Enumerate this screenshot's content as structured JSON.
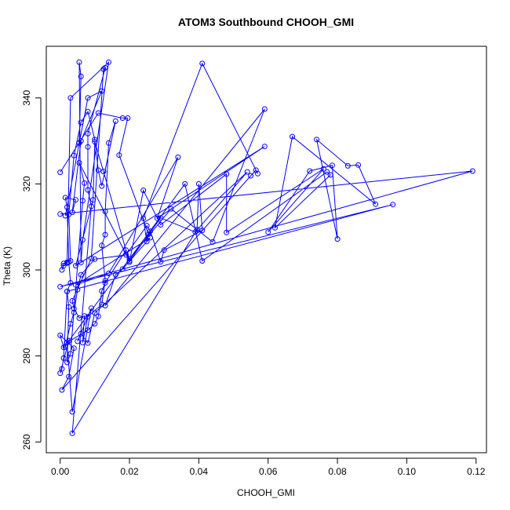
{
  "chart_data": {
    "type": "line",
    "title": "ATOM3 Southbound CHOOH_GMI",
    "xlabel": "CHOOH_GMI",
    "ylabel": "Theta (K)",
    "xlim": [
      -0.004,
      0.123
    ],
    "ylim": [
      257.5,
      352
    ],
    "xticks": [
      0.0,
      0.02,
      0.04,
      0.06,
      0.08,
      0.1,
      0.12
    ],
    "xtick_labels": [
      "0.00",
      "0.02",
      "0.04",
      "0.06",
      "0.08",
      "0.10",
      "0.12"
    ],
    "yticks": [
      260,
      280,
      300,
      320,
      340
    ],
    "ytick_labels": [
      "260",
      "280",
      "300",
      "320",
      "340"
    ],
    "grid": false,
    "series_color": "#0000ff",
    "markers": "open-circle",
    "series": [
      {
        "points": [
          [
            0.0,
            322.7
          ],
          [
            0.011,
            336.5
          ],
          [
            0.018,
            335.3
          ],
          [
            0.0195,
            335.3
          ],
          [
            0.017,
            326.7
          ],
          [
            0.0255,
            308.3
          ],
          [
            0.025,
            306.6
          ],
          [
            0.024,
            312.0
          ],
          [
            0.041,
            348.0
          ],
          [
            0.057,
            322.4
          ],
          [
            0.0565,
            323.2
          ],
          [
            0.055,
            321.9
          ],
          [
            0.0005,
            272.1
          ],
          [
            0.0025,
            275.2
          ],
          [
            0.004,
            281.8
          ],
          [
            0.0,
            284.8
          ],
          [
            0.001,
            282.0
          ],
          [
            0.0015,
            282.1
          ],
          [
            0.003,
            287.5
          ],
          [
            0.004,
            290.1
          ],
          [
            0.005,
            295.4
          ],
          [
            0.006,
            298.9
          ],
          [
            0.01,
            302.5
          ],
          [
            0.019,
            303.5
          ],
          [
            0.025,
            310.3
          ],
          [
            0.026,
            309.0
          ],
          [
            0.029,
            301.9
          ],
          [
            0.03,
            304.6
          ],
          [
            0.041,
            309.2
          ],
          [
            0.04,
            320.0
          ],
          [
            0.0395,
            309.4
          ],
          [
            0.0035,
            262.0
          ],
          [
            0.009,
            314.8
          ],
          [
            0.008,
            318.6
          ],
          [
            0.008,
            328.6
          ],
          [
            0.008,
            331.7
          ],
          [
            0.013,
            347.0
          ],
          [
            0.0125,
            346.7
          ],
          [
            0.009,
            302.7
          ],
          [
            0.0035,
            292.8
          ],
          [
            0.004,
            291.0
          ],
          [
            0.0055,
            288.8
          ],
          [
            0.007,
            289.3
          ],
          [
            0.0065,
            283.1
          ],
          [
            0.008,
            289.1
          ],
          [
            0.012,
            292.0
          ],
          [
            0.013,
            297.5
          ],
          [
            0.012,
            305.7
          ],
          [
            0.013,
            308.2
          ],
          [
            0.013,
            313.6
          ],
          [
            0.014,
            329.5
          ],
          [
            0.016,
            334.6
          ],
          [
            0.012,
            319.5
          ],
          [
            0.011,
            323.2
          ],
          [
            0.01,
            330.3
          ],
          [
            0.008,
            336.8
          ],
          [
            0.006,
            334.3
          ],
          [
            0.004,
            326.6
          ],
          [
            0.0025,
            312.9
          ],
          [
            0.003,
            302.1
          ],
          [
            0.002,
            301.8
          ],
          [
            0.001,
            301.5
          ],
          [
            0.0005,
            300.0
          ],
          [
            0.001,
            301.0
          ],
          [
            0.002,
            301.6
          ],
          [
            0.003,
            340.0
          ],
          [
            0.014,
            348.3
          ],
          [
            0.0065,
            307.0
          ],
          [
            0.006,
            301.7
          ],
          [
            0.0055,
            348.3
          ],
          [
            0.006,
            345.0
          ],
          [
            0.0055,
            329.5
          ],
          [
            0.0015,
            312.6
          ],
          [
            0.008,
            340.0
          ],
          [
            0.012,
            341.6
          ],
          [
            0.006,
            330.0
          ],
          [
            0.0035,
            313.4
          ],
          [
            0.0045,
            316.3
          ],
          [
            0.0015,
            316.8
          ],
          [
            0.002,
            314.6
          ],
          [
            0.0025,
            301.8
          ],
          [
            0.003,
            297.0
          ],
          [
            0.002,
            295.0
          ],
          [
            0.0025,
            291.4
          ],
          [
            0.002,
            278.5
          ],
          [
            0.003,
            280.5
          ],
          [
            0.0065,
            316.1
          ],
          [
            0.007,
            320.2
          ],
          [
            0.0055,
            324.9
          ],
          [
            0.02,
            302.1
          ],
          [
            0.029,
            312.1
          ],
          [
            0.039,
            308.8
          ],
          [
            0.054,
            322.8
          ],
          [
            0.01,
            290.0
          ],
          [
            0.008,
            283.0
          ],
          [
            0.006,
            285.2
          ],
          [
            0.005,
            283.4
          ],
          [
            0.009,
            291.1
          ],
          [
            0.0035,
            267.0
          ],
          [
            0.002,
            283.1
          ],
          [
            0.008,
            286.0
          ],
          [
            0.01,
            287.5
          ],
          [
            0.011,
            289.2
          ],
          [
            0.012,
            295.1
          ],
          [
            0.013,
            297.0
          ],
          [
            0.019,
            304.6
          ],
          [
            0.02,
            302.6
          ],
          [
            0.032,
            314.2
          ],
          [
            0.044,
            306.5
          ],
          [
            0.059,
            337.4
          ],
          [
            0.013,
            291.7
          ],
          [
            0.016,
            298.9
          ],
          [
            0.018,
            300.2
          ],
          [
            0.026,
            307.5
          ],
          [
            0.0045,
            296.5
          ],
          [
            0.014,
            299.2
          ],
          [
            0.034,
            326.2
          ],
          [
            0.028,
            312.0
          ],
          [
            0.059,
            328.7
          ],
          [
            0.0045,
            301.0
          ],
          [
            0.0095,
            316.3
          ],
          [
            0.01,
            329.8
          ],
          [
            0.0125,
            322.9
          ],
          [
            0.02,
            301.8
          ],
          [
            0.024,
            318.5
          ],
          [
            0.029,
            310.5
          ],
          [
            0.048,
            322.3
          ],
          [
            0.048,
            308.7
          ],
          [
            0.076,
            323.5
          ],
          [
            0.06,
            308.8
          ],
          [
            0.072,
            323.0
          ],
          [
            0.0785,
            324.3
          ],
          [
            0.08,
            307.2
          ],
          [
            0.074,
            330.3
          ],
          [
            0.083,
            324.2
          ],
          [
            0.086,
            324.4
          ],
          [
            0.091,
            315.3
          ],
          [
            0.067,
            331.0
          ],
          [
            0.062,
            309.8
          ],
          [
            0.078,
            322.1
          ],
          [
            0.077,
            322.8
          ],
          [
            0.041,
            302.1
          ],
          [
            0.036,
            320.0
          ],
          [
            0.0025,
            283.5
          ],
          [
            0.0,
            276.0
          ],
          [
            0.0005,
            277.0
          ],
          [
            0.001,
            279.5
          ],
          [
            0.002,
            295.0
          ],
          [
            0.096,
            315.2
          ],
          [
            0.0,
            296.1
          ],
          [
            0.119,
            323.0
          ],
          [
            0.0,
            313.0
          ]
        ]
      }
    ]
  }
}
